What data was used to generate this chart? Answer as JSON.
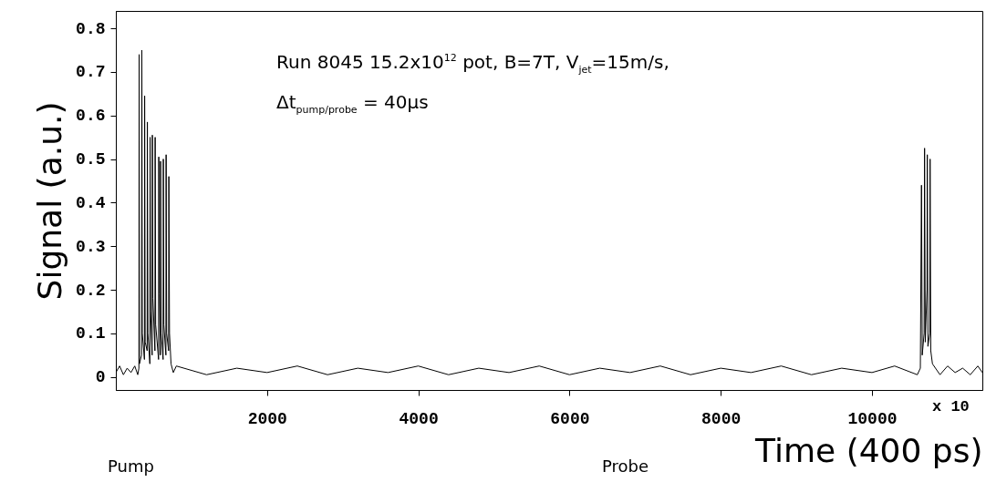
{
  "chart_data": {
    "type": "line",
    "xlabel": "Time (400 ps)",
    "ylabel": "Signal (a.u.)",
    "annotations": [
      "Run 8045 15.2x10$^{12}$ pot, B=7T, V$_{jet}$=15m/s,",
      "Δt$_{pump/probe}$ = 40μs",
      "x 10",
      "Pump",
      "Probe"
    ],
    "color": "#000000",
    "x": [
      0,
      50,
      100,
      150,
      200,
      250,
      290,
      305,
      308,
      312,
      340,
      344,
      350,
      378,
      381,
      388,
      414,
      417,
      424,
      450,
      453,
      460,
      480,
      483,
      490,
      517,
      520,
      527,
      565,
      568,
      575,
      589,
      592,
      600,
      625,
      628,
      635,
      662,
      665,
      672,
      698,
      701,
      710,
      730,
      760,
      800,
      1200,
      1600,
      2000,
      2400,
      2800,
      3200,
      3600,
      4000,
      4400,
      4800,
      5200,
      5600,
      6000,
      6400,
      6800,
      7200,
      7600,
      8000,
      8400,
      8800,
      9200,
      9600,
      10000,
      10300,
      10600,
      10640,
      10655,
      10665,
      10690,
      10696,
      10705,
      10728,
      10732,
      10740,
      10765,
      10769,
      10778,
      10800,
      10900,
      11000,
      11100,
      11200,
      11300,
      11400,
      11460
    ],
    "values": [
      0.01,
      0.025,
      0.005,
      0.02,
      0.01,
      0.025,
      0.005,
      0.02,
      0.74,
      0.03,
      0.05,
      0.75,
      0.1,
      0.04,
      0.645,
      0.08,
      0.06,
      0.585,
      0.1,
      0.03,
      0.55,
      0.15,
      0.05,
      0.555,
      0.18,
      0.06,
      0.55,
      0.12,
      0.04,
      0.505,
      0.19,
      0.05,
      0.495,
      0.1,
      0.04,
      0.5,
      0.12,
      0.05,
      0.51,
      0.1,
      0.06,
      0.46,
      0.1,
      0.03,
      0.01,
      0.025,
      0.005,
      0.02,
      0.01,
      0.025,
      0.005,
      0.02,
      0.01,
      0.025,
      0.005,
      0.02,
      0.01,
      0.025,
      0.005,
      0.02,
      0.01,
      0.025,
      0.005,
      0.02,
      0.01,
      0.025,
      0.005,
      0.02,
      0.01,
      0.025,
      0.005,
      0.02,
      0.44,
      0.05,
      0.1,
      0.525,
      0.08,
      0.2,
      0.51,
      0.07,
      0.1,
      0.5,
      0.06,
      0.03,
      0.005,
      0.025,
      0.01,
      0.02,
      0.005,
      0.025,
      0.01
    ],
    "xlim": [
      0,
      11460
    ],
    "ylim": [
      -0.03,
      0.84
    ],
    "xticks": [
      2000,
      4000,
      6000,
      8000,
      10000
    ],
    "yticks": [
      0,
      0.1,
      0.2,
      0.3,
      0.4,
      0.5,
      0.6,
      0.7,
      0.8
    ]
  }
}
